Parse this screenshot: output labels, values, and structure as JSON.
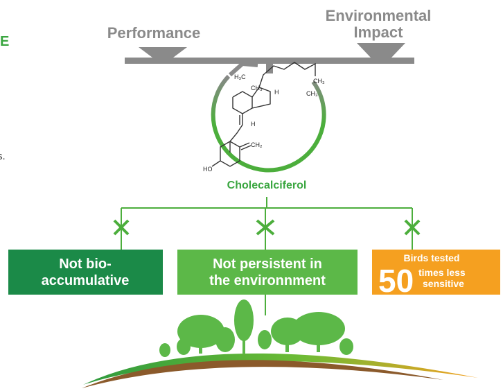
{
  "edge_texts": {
    "top": "E",
    "middle": "s."
  },
  "balance": {
    "left": "Performance",
    "right": [
      "Environmental",
      "Impact"
    ]
  },
  "molecule": {
    "name": "Cholecalciferol",
    "atoms": [
      "H₃C",
      "CH₃",
      "CH₃",
      "H",
      "CH₃",
      "H",
      "CH₂",
      "HO"
    ]
  },
  "boxes": [
    {
      "lines": [
        "Not bio-",
        "accumulative"
      ]
    },
    {
      "lines": [
        "Not persistent in",
        "the environnment"
      ]
    },
    {
      "top": "Birds tested",
      "number": "50",
      "lines": [
        "times less",
        "sensitive"
      ]
    }
  ]
}
